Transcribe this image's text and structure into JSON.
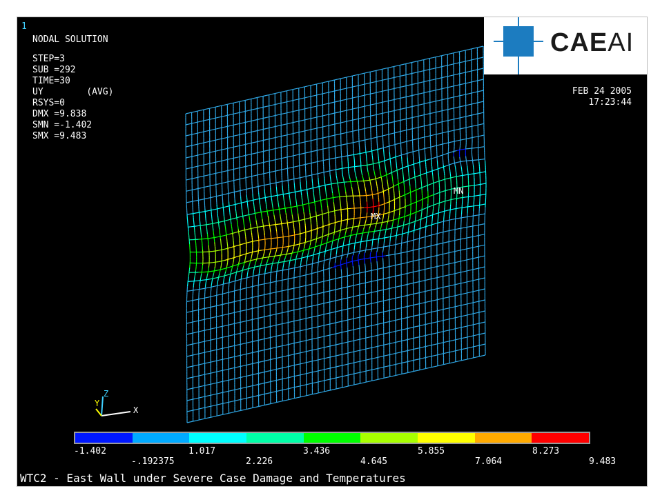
{
  "window_number": "1",
  "info": {
    "title": "NODAL SOLUTION",
    "lines": [
      "STEP=3",
      "SUB =292",
      "TIME=30",
      "UY        (AVG)",
      "RSYS=0",
      "DMX =9.838",
      "SMN =-1.402",
      "SMX =9.483"
    ]
  },
  "datetime": {
    "date": "FEB 24 2005",
    "time": "17:23:44"
  },
  "logo": {
    "bold": "CAE",
    "light": "AI",
    "color": "#1c7cc0"
  },
  "markers": {
    "max": "MX",
    "min": "MN"
  },
  "axes": {
    "x": "X",
    "y": "Y",
    "z": "Z"
  },
  "legend": {
    "colors": [
      "#0018ff",
      "#00aaff",
      "#00ffff",
      "#00ffa8",
      "#00ff00",
      "#a8ff00",
      "#ffff00",
      "#ffaa00",
      "#ff0000"
    ],
    "labels_upper": [
      "-1.402",
      "1.017",
      "3.436",
      "5.855",
      "8.273"
    ],
    "labels_lower": [
      "-.192375",
      "2.226",
      "4.645",
      "7.064",
      "9.483"
    ]
  },
  "footer": "WTC2 - East Wall under Severe Case Damage and Temperatures"
}
